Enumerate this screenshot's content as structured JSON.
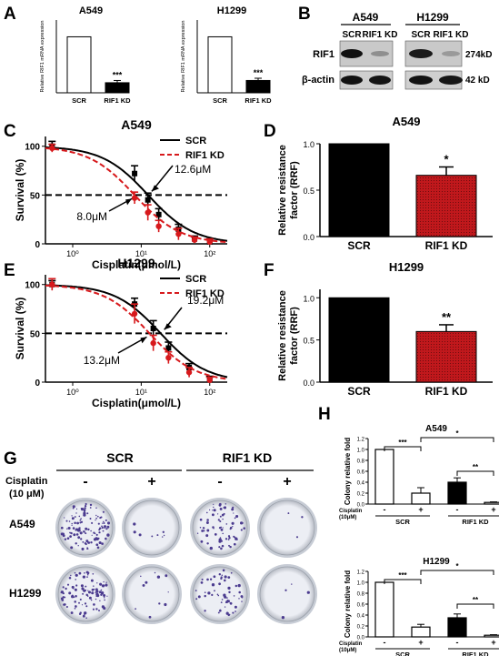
{
  "colors": {
    "scr": "#000000",
    "kd": "#d7191c",
    "kd_fill": "#b0171b",
    "plate_rim": "#d8dbe0",
    "plate_bg": "#eef0f5",
    "colony": "#4b3b8f"
  },
  "panel_letters": {
    "A": "A",
    "B": "B",
    "C": "C",
    "D": "D",
    "E": "E",
    "F": "F",
    "G": "G",
    "H": "H"
  },
  "panel_a": {
    "ylabel": "Relative RIF1 mRNA expression",
    "star": "***",
    "charts": [
      {
        "title": "A549",
        "categories": [
          "SCR",
          "RIF1 KD"
        ],
        "values": [
          1.0,
          0.18
        ],
        "errors": [
          0,
          0.04
        ]
      },
      {
        "title": "H1299",
        "categories": [
          "SCR",
          "RIF1 KD"
        ],
        "values": [
          1.0,
          0.22
        ],
        "errors": [
          0,
          0.04
        ]
      }
    ]
  },
  "panel_b": {
    "cell_lines": [
      "A549",
      "H1299"
    ],
    "lanes": [
      "SCR",
      "RIF1 KD",
      "SCR",
      "RIF1 KD"
    ],
    "rows": [
      {
        "label": "RIF1",
        "size": "274kD"
      },
      {
        "label": "β-actin",
        "size": "42 kD"
      }
    ]
  },
  "panel_g": {
    "groups": [
      "SCR",
      "RIF1 KD"
    ],
    "treatment_label": [
      "Cisplatin",
      "(10 μM)"
    ],
    "signs": [
      "-",
      "+",
      "-",
      "+"
    ],
    "rows": [
      "A549",
      "H1299"
    ],
    "colony_density": [
      [
        0.85,
        0.06,
        0.55,
        0.02
      ],
      [
        0.7,
        0.08,
        0.45,
        0.03
      ]
    ]
  },
  "chart_data": [
    {
      "type": "line",
      "panel": "C",
      "title": "A549",
      "xlabel": "Cisplatin(μmol/L)",
      "ylabel": "Survival (%)",
      "xscale": "log",
      "xlim": [
        0.4,
        180
      ],
      "ylim": [
        0,
        110
      ],
      "yticks": [
        0,
        50,
        100
      ],
      "xticks": [
        "10⁰",
        "10¹",
        "10²"
      ],
      "legend": "top-right",
      "threshold": 50,
      "series": [
        {
          "name": "SCR",
          "ic50": 12.6,
          "x": [
            0.5,
            8,
            12.5,
            18,
            35,
            60,
            100
          ],
          "y": [
            100,
            72,
            45,
            30,
            15,
            5,
            2
          ],
          "err": [
            5,
            8,
            7,
            6,
            5,
            3,
            3
          ]
        },
        {
          "name": "RIF1 KD",
          "ic50": 8.0,
          "x": [
            0.5,
            8,
            12.5,
            18,
            35,
            60,
            100
          ],
          "y": [
            98,
            47,
            32,
            18,
            10,
            4,
            2
          ],
          "err": [
            4,
            6,
            8,
            6,
            6,
            3,
            3
          ]
        }
      ],
      "annotations": [
        "12.6μM",
        "8.0μM"
      ]
    },
    {
      "type": "bar",
      "panel": "D",
      "title": "A549",
      "ylabel": "Relative resistance factor (RRF)",
      "categories": [
        "SCR",
        "RIF1 KD"
      ],
      "values": [
        1.0,
        0.66
      ],
      "errors": [
        0,
        0.09
      ],
      "ylim": [
        0,
        1.0
      ],
      "yticks": [
        "0.0",
        "0.5",
        "1.0"
      ],
      "significance": "*"
    },
    {
      "type": "line",
      "panel": "E",
      "title": "H1299",
      "xlabel": "Cisplatin(μmol/L)",
      "ylabel": "Survival (%)",
      "xscale": "log",
      "xlim": [
        0.4,
        180
      ],
      "ylim": [
        0,
        110
      ],
      "yticks": [
        0,
        50,
        100
      ],
      "xticks": [
        "10⁰",
        "10¹",
        "10²"
      ],
      "legend": "top-right",
      "threshold": 50,
      "series": [
        {
          "name": "SCR",
          "ic50": 19.2,
          "x": [
            0.5,
            8,
            15,
            25,
            50,
            100
          ],
          "y": [
            100,
            80,
            55,
            35,
            15,
            3
          ],
          "err": [
            4,
            6,
            8,
            6,
            4,
            3
          ]
        },
        {
          "name": "RIF1 KD",
          "ic50": 13.2,
          "x": [
            0.5,
            8,
            15,
            25,
            50,
            100
          ],
          "y": [
            100,
            70,
            40,
            25,
            10,
            2
          ],
          "err": [
            6,
            10,
            8,
            6,
            5,
            3
          ]
        }
      ],
      "annotations": [
        "19.2μM",
        "13.2μM"
      ]
    },
    {
      "type": "bar",
      "panel": "F",
      "title": "H1299",
      "ylabel": "Relative resistance factor (RRF)",
      "categories": [
        "SCR",
        "RIF1 KD"
      ],
      "values": [
        1.0,
        0.6
      ],
      "errors": [
        0,
        0.08
      ],
      "ylim": [
        0,
        1.1
      ],
      "yticks": [
        "0.0",
        "0.5",
        "1.0"
      ],
      "significance": "**"
    },
    {
      "type": "bar",
      "panel": "H",
      "title": "A549",
      "ylabel": "Colony relative fold",
      "categories": [
        "SCR -",
        "SCR +",
        "RIF1 KD -",
        "RIF1 KD +"
      ],
      "values": [
        1.0,
        0.2,
        0.4,
        0.03
      ],
      "errors": [
        0,
        0.1,
        0.08,
        0.01
      ],
      "ylim": [
        0,
        1.2
      ],
      "yticks": [
        "0.0",
        "0.2",
        "0.4",
        "0.6",
        "0.8",
        "1.0",
        "1.2"
      ],
      "x_row_label": [
        "Cisplatin",
        "(10μM)"
      ],
      "signs": [
        "-",
        "+",
        "-",
        "+"
      ],
      "groups": [
        "SCR",
        "RIF1 KD"
      ],
      "significance": [
        {
          "from": 0,
          "to": 1,
          "label": "***"
        },
        {
          "from": 1,
          "to": 3,
          "label": "*"
        },
        {
          "from": 2,
          "to": 3,
          "label": "**"
        }
      ]
    },
    {
      "type": "bar",
      "panel": "H",
      "title": "H1299",
      "ylabel": "Colony relative fold",
      "categories": [
        "SCR -",
        "SCR +",
        "RIF1 KD -",
        "RIF1 KD +"
      ],
      "values": [
        1.0,
        0.18,
        0.35,
        0.03
      ],
      "errors": [
        0,
        0.05,
        0.07,
        0.01
      ],
      "ylim": [
        0,
        1.2
      ],
      "yticks": [
        "0.0",
        "0.2",
        "0.4",
        "0.6",
        "0.8",
        "1.0",
        "1.2"
      ],
      "x_row_label": [
        "Cisplatin",
        "(10μM)"
      ],
      "signs": [
        "-",
        "+",
        "-",
        "+"
      ],
      "groups": [
        "SCR",
        "RIF1 KD"
      ],
      "significance": [
        {
          "from": 0,
          "to": 1,
          "label": "***"
        },
        {
          "from": 1,
          "to": 3,
          "label": "*"
        },
        {
          "from": 2,
          "to": 3,
          "label": "**"
        }
      ]
    }
  ]
}
